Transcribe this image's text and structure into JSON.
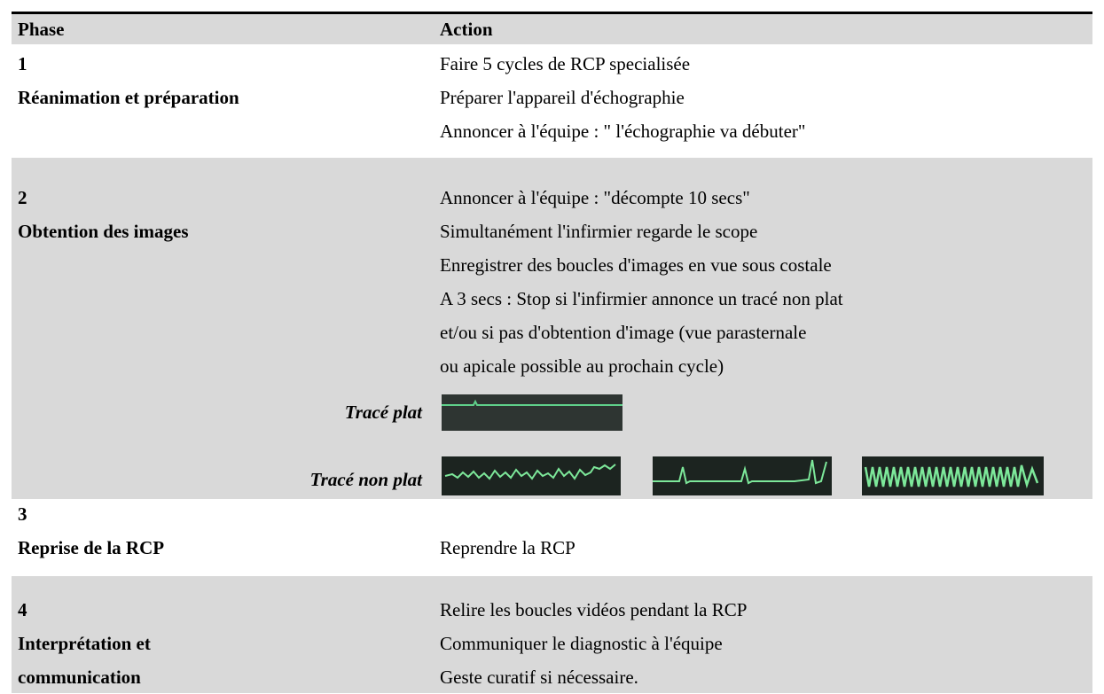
{
  "header": {
    "columns": [
      "Phase",
      "Action"
    ]
  },
  "rows": [
    {
      "number": "1",
      "title_lines": [
        "Réanimation et préparation"
      ],
      "actions": [
        "Faire 5 cycles de RCP specialisée",
        "Préparer l'appareil d'échographie",
        "Annoncer à l'équipe : \" l'échographie va débuter\""
      ]
    },
    {
      "number": "2",
      "title_lines": [
        "Obtention des images"
      ],
      "actions": [
        "Annoncer à l'équipe : \"décompte 10 secs\"",
        "Simultanément l'infirmier regarde le scope",
        "Enregistrer des boucles d'images en vue sous costale",
        "A 3 secs : Stop si l'infirmier annonce un tracé non plat",
        "et/ou si pas d'obtention d'image (vue parasternale",
        "ou apicale possible au prochain cycle)"
      ]
    },
    {
      "number": "3",
      "title_lines": [
        "Reprise de la RCP"
      ],
      "actions": [
        "Reprendre la RCP"
      ]
    },
    {
      "number": "4",
      "title_lines": [
        "Interprétation et",
        "communication"
      ],
      "actions": [
        "Relire les boucles vidéos pendant la RCP",
        "Communiquer le diagnostic à l'équipe",
        "Geste curatif si nécessaire."
      ]
    }
  ],
  "ecg": {
    "flat_label": "Tracé plat",
    "nonflat_label": "Tracé non plat"
  }
}
